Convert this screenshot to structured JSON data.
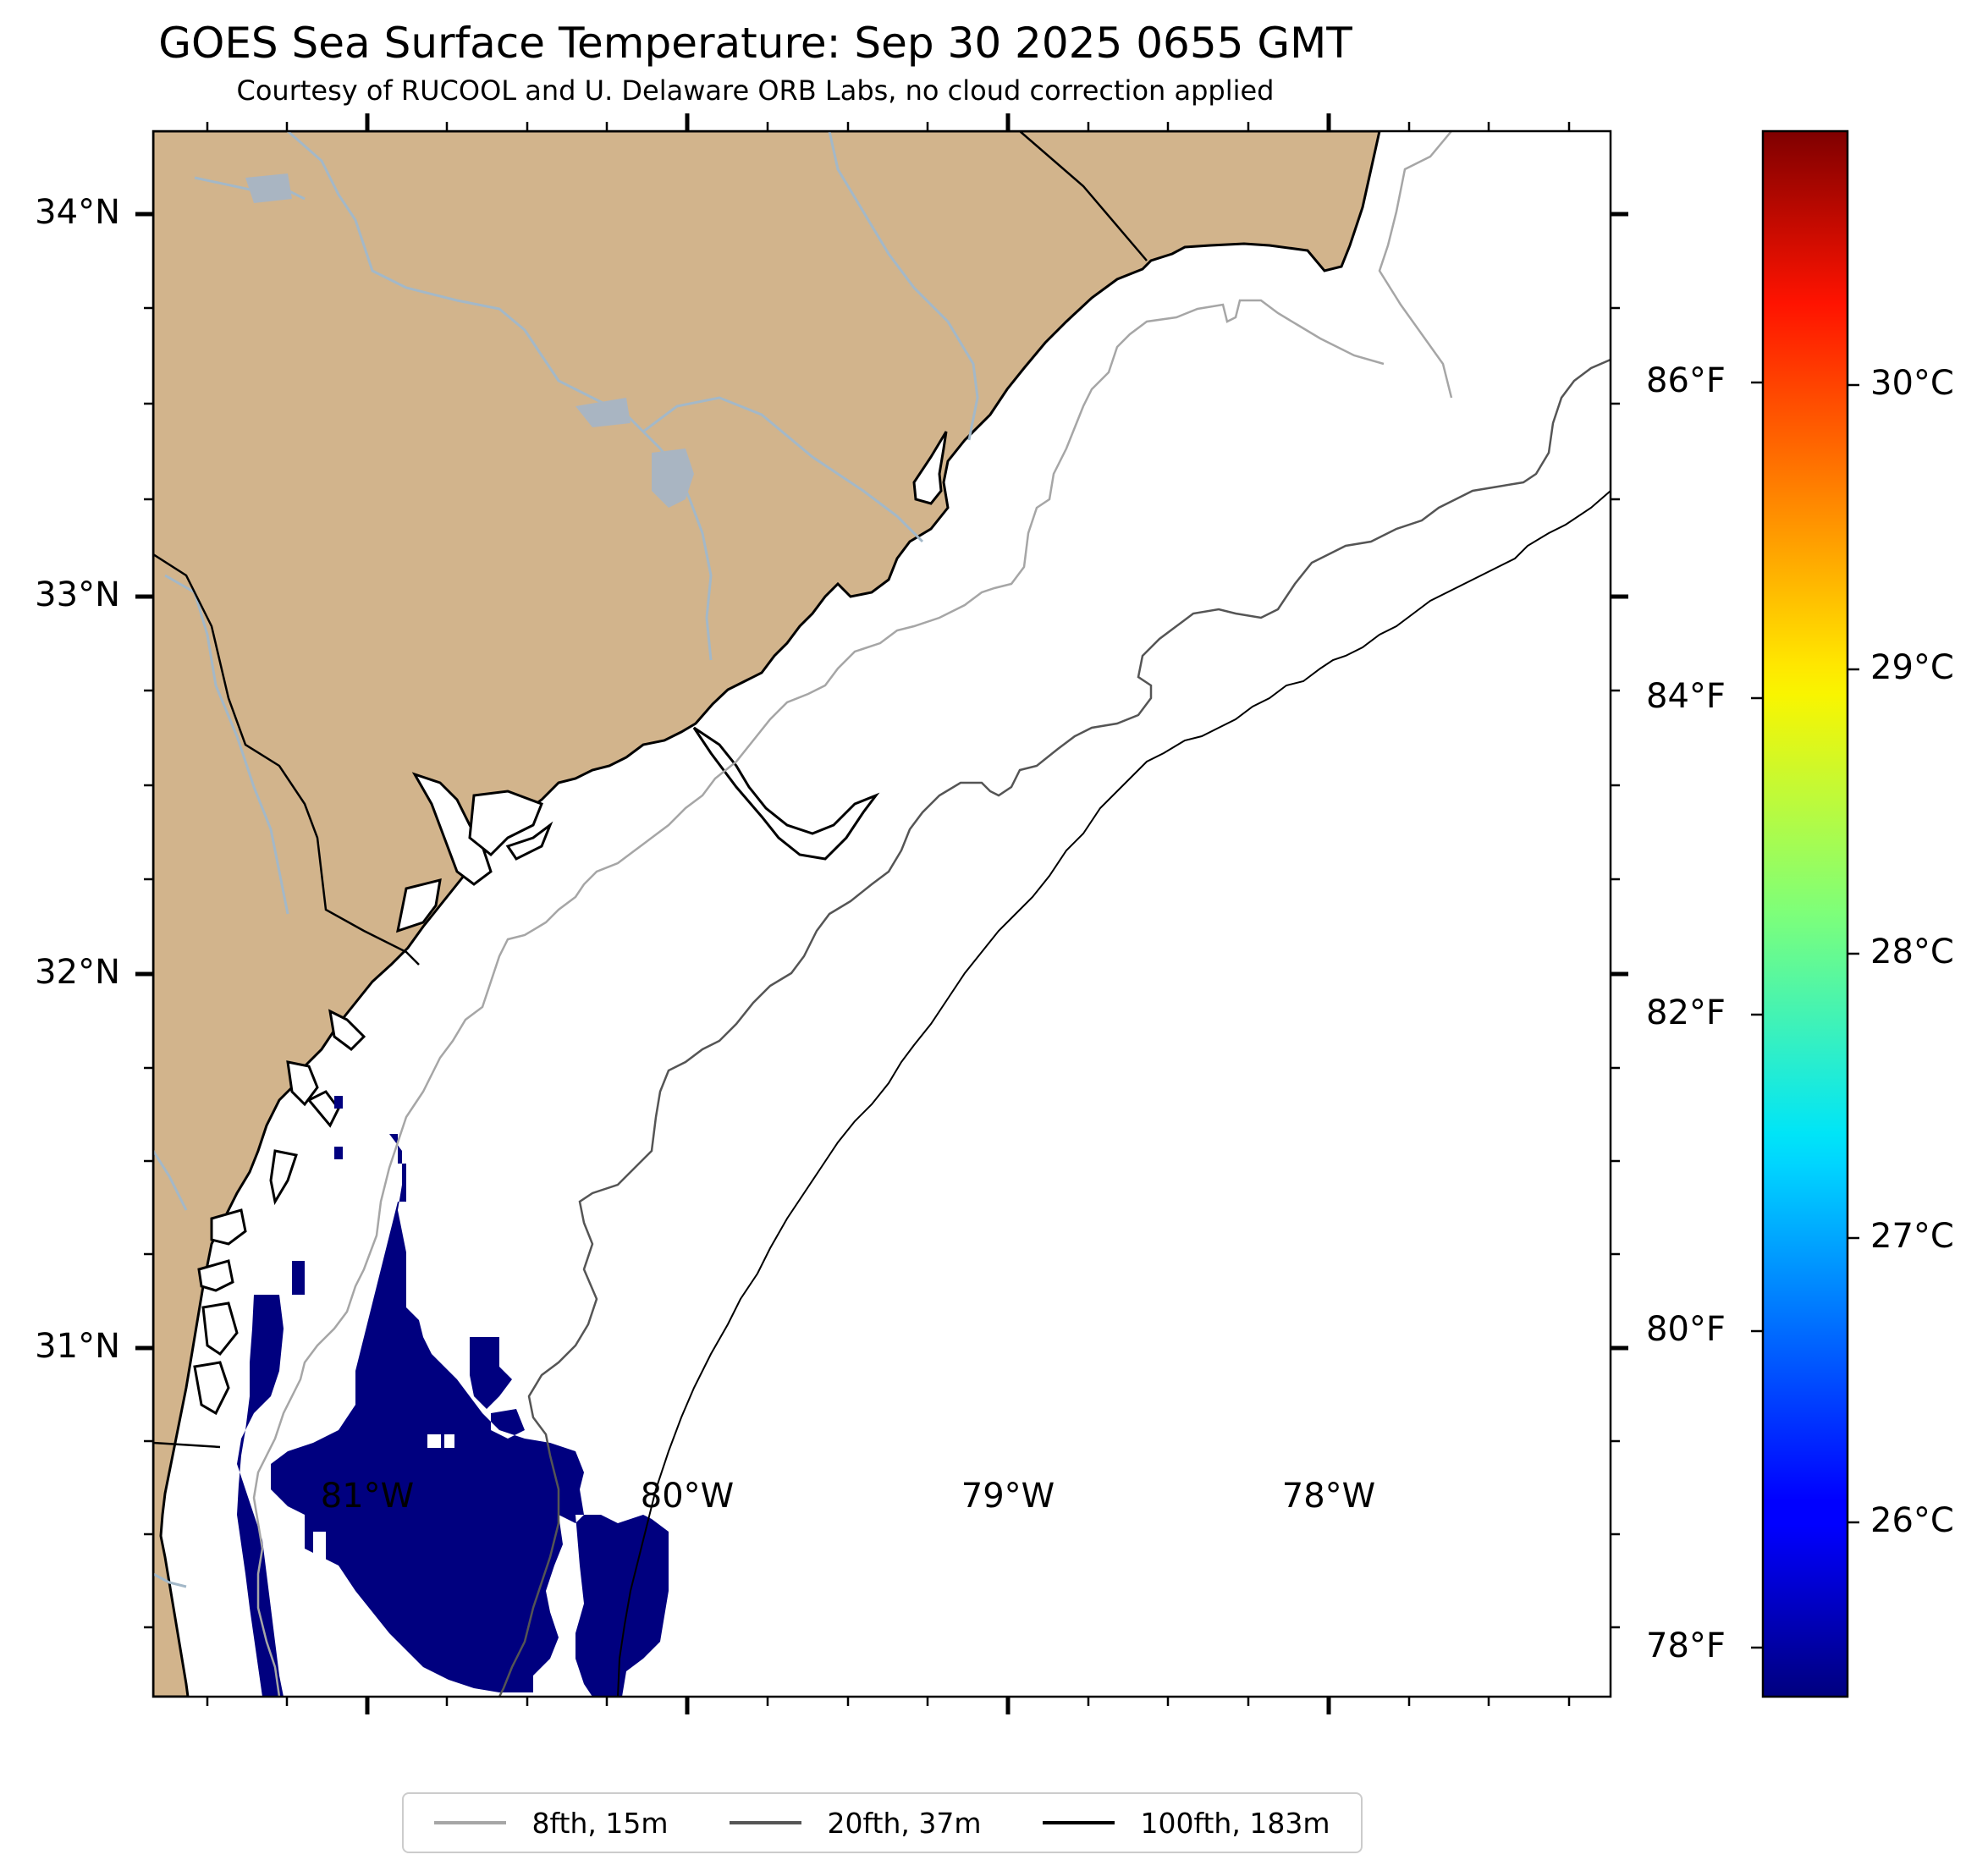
{
  "title": "GOES Sea Surface Temperature: Sep 30 2025 0655 GMT",
  "subtitle": "Courtesy of RUCOOL and U. Delaware ORB Labs, no cloud correction applied",
  "map": {
    "land_color": "#d2b48c",
    "river_color": "#a3b8c8",
    "sst_color": "#00007f",
    "lat_ticks": [
      "34°N",
      "33°N",
      "32°N",
      "31°N"
    ],
    "lon_ticks": [
      "81°W",
      "80°W",
      "79°W",
      "78°W"
    ]
  },
  "colorbar": {
    "colormap": "jet",
    "fahrenheit_ticks": [
      "86°F",
      "84°F",
      "82°F",
      "80°F",
      "78°F"
    ],
    "celsius_ticks": [
      "30°C",
      "29°C",
      "28°C",
      "27°C",
      "26°C"
    ]
  },
  "legend": [
    {
      "label": "8fth, 15m",
      "color": "#a6a6a6"
    },
    {
      "label": "20fth, 37m",
      "color": "#555555"
    },
    {
      "label": "100fth, 183m",
      "color": "#000000"
    }
  ]
}
